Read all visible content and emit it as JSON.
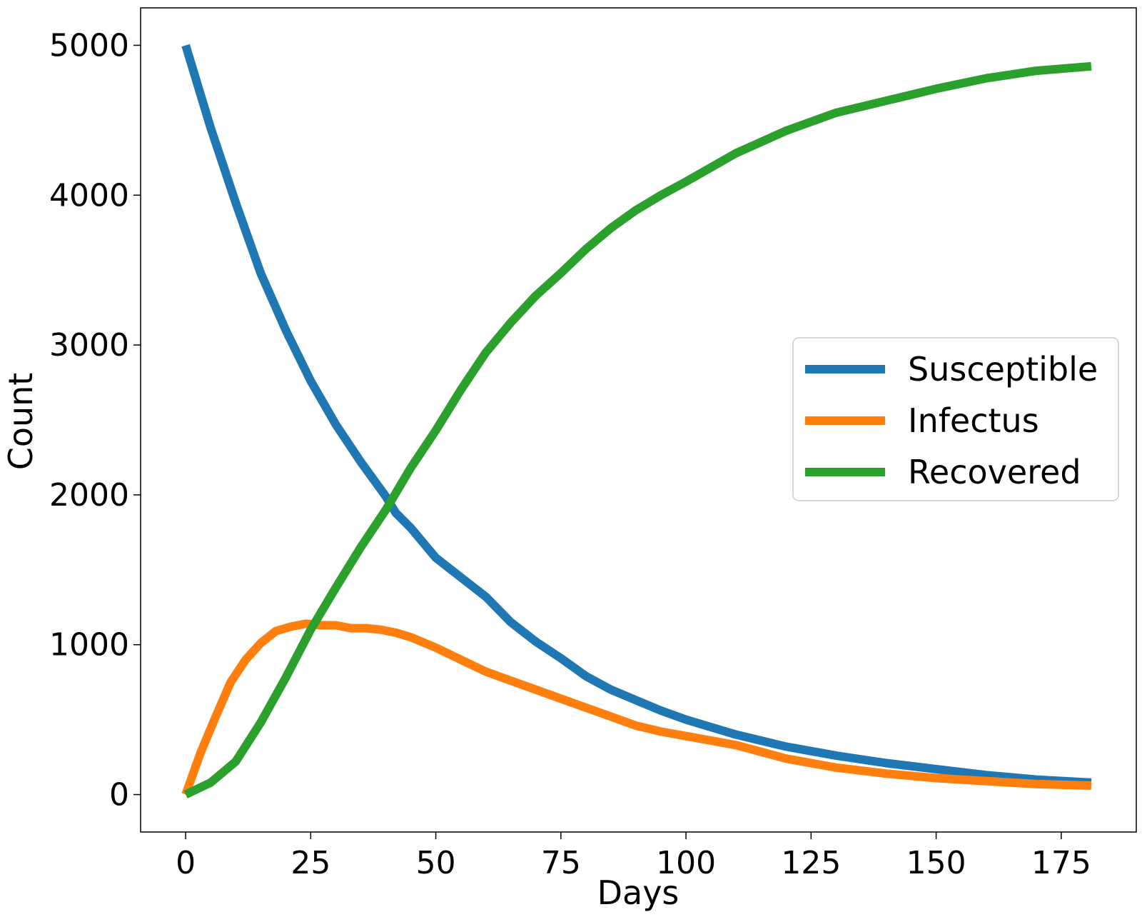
{
  "chart_data": {
    "type": "line",
    "title": "",
    "xlabel": "Days",
    "ylabel": "Count",
    "xlim": [
      -9,
      190
    ],
    "ylim": [
      -250,
      5250
    ],
    "xticks": [
      0,
      25,
      50,
      75,
      100,
      125,
      150,
      175
    ],
    "yticks": [
      0,
      1000,
      2000,
      3000,
      4000,
      5000
    ],
    "grid": false,
    "legend_position": "center-right",
    "series": [
      {
        "name": "Susceptible",
        "color": "#1f77b4",
        "x": [
          0,
          5,
          10,
          15,
          20,
          25,
          30,
          35,
          40,
          42,
          45,
          50,
          55,
          60,
          65,
          70,
          75,
          80,
          85,
          90,
          95,
          100,
          105,
          110,
          115,
          120,
          125,
          130,
          140,
          150,
          160,
          170,
          181
        ],
        "y": [
          5000,
          4450,
          3950,
          3480,
          3100,
          2760,
          2470,
          2220,
          1990,
          1880,
          1780,
          1580,
          1450,
          1320,
          1150,
          1020,
          910,
          790,
          700,
          630,
          560,
          500,
          450,
          400,
          360,
          320,
          290,
          260,
          210,
          170,
          130,
          100,
          80
        ]
      },
      {
        "name": "Infectus",
        "color": "#ff7f0e",
        "x": [
          0,
          3,
          6,
          9,
          12,
          15,
          18,
          21,
          24,
          27,
          30,
          33,
          36,
          39,
          42,
          45,
          50,
          55,
          60,
          65,
          70,
          75,
          80,
          85,
          90,
          95,
          100,
          110,
          120,
          130,
          140,
          150,
          160,
          170,
          181
        ],
        "y": [
          0,
          280,
          520,
          750,
          900,
          1010,
          1090,
          1120,
          1140,
          1130,
          1130,
          1110,
          1110,
          1100,
          1080,
          1050,
          980,
          900,
          820,
          760,
          700,
          640,
          580,
          520,
          460,
          420,
          390,
          330,
          240,
          180,
          140,
          110,
          90,
          70,
          60
        ]
      },
      {
        "name": "Recovered",
        "color": "#2ca02c",
        "x": [
          0,
          5,
          10,
          15,
          20,
          25,
          30,
          35,
          40,
          45,
          50,
          55,
          60,
          65,
          70,
          75,
          80,
          85,
          90,
          95,
          100,
          110,
          120,
          130,
          140,
          150,
          160,
          170,
          181
        ],
        "y": [
          0,
          80,
          220,
          480,
          780,
          1100,
          1380,
          1650,
          1900,
          2180,
          2430,
          2700,
          2950,
          3150,
          3330,
          3480,
          3640,
          3780,
          3900,
          4000,
          4090,
          4280,
          4430,
          4550,
          4630,
          4710,
          4780,
          4830,
          4860
        ]
      }
    ]
  }
}
